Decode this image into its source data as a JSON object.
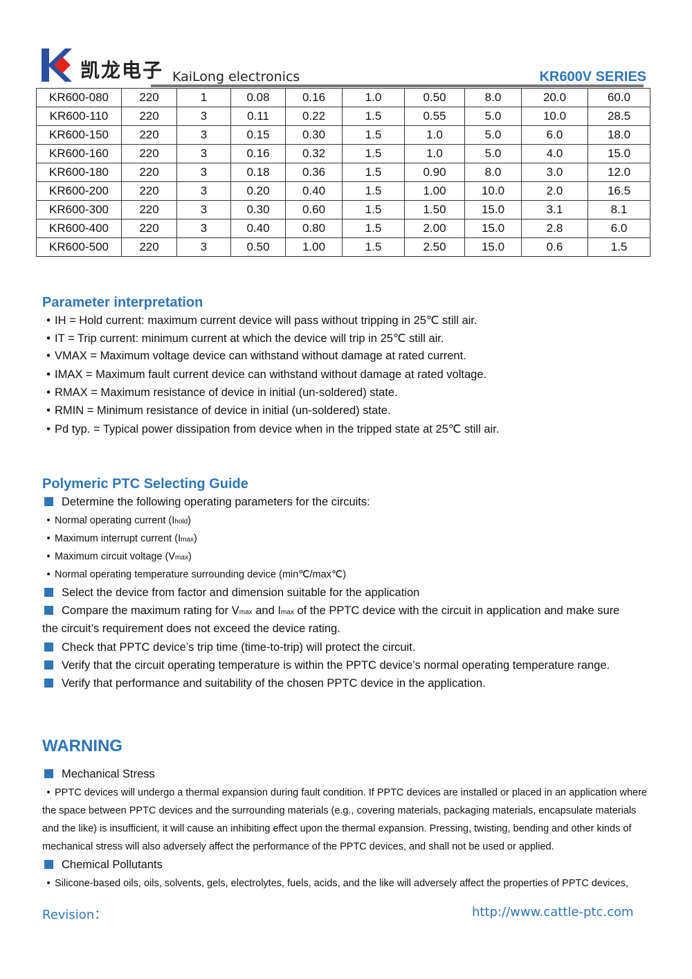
{
  "header": {
    "logo_text": "凯龙电子",
    "brand": "KaiLong electronics",
    "series": "KR600V SERIES"
  },
  "table": {
    "rows": [
      [
        "KR600-080",
        "220",
        "1",
        "0.08",
        "0.16",
        "1.0",
        "0.50",
        "8.0",
        "20.0",
        "60.0"
      ],
      [
        "KR600-110",
        "220",
        "3",
        "0.11",
        "0.22",
        "1.5",
        "0.55",
        "5.0",
        "10.0",
        "28.5"
      ],
      [
        "KR600-150",
        "220",
        "3",
        "0.15",
        "0.30",
        "1.5",
        "1.0",
        "5.0",
        "6.0",
        "18.0"
      ],
      [
        "KR600-160",
        "220",
        "3",
        "0.16",
        "0.32",
        "1.5",
        "1.0",
        "5.0",
        "4.0",
        "15.0"
      ],
      [
        "KR600-180",
        "220",
        "3",
        "0.18",
        "0.36",
        "1.5",
        "0.90",
        "8.0",
        "3.0",
        "12.0"
      ],
      [
        "KR600-200",
        "220",
        "3",
        "0.20",
        "0.40",
        "1.5",
        "1.00",
        "10.0",
        "2.0",
        "16.5"
      ],
      [
        "KR600-300",
        "220",
        "3",
        "0.30",
        "0.60",
        "1.5",
        "1.50",
        "15.0",
        "3.1",
        "8.1"
      ],
      [
        "KR600-400",
        "220",
        "3",
        "0.40",
        "0.80",
        "1.5",
        "2.00",
        "15.0",
        "2.8",
        "6.0"
      ],
      [
        "KR600-500",
        "220",
        "3",
        "0.50",
        "1.00",
        "1.5",
        "2.50",
        "15.0",
        "0.6",
        "1.5"
      ]
    ]
  },
  "params": {
    "title": "Parameter interpretation",
    "items": [
      "IH = Hold current: maximum current device will pass without tripping in 25℃  still air.",
      "IT = Trip current: minimum current at which the device will trip in 25℃  still air.",
      "VMAX = Maximum voltage device can withstand without damage at rated current.",
      "IMAX = Maximum fault current device can withstand without damage at rated voltage.",
      "RMAX = Maximum resistance of device in initial (un-soldered) state.",
      "RMIN = Minimum resistance of device in initial (un-soldered) state.",
      "Pd typ. = Typical power dissipation from device when in the tripped state at 25℃  still air."
    ]
  },
  "guide": {
    "title": "Polymeric PTC Selecting Guide",
    "step1": "Determine the following operating parameters for the circuits:",
    "sub1": {
      "text": "Normal operating current (I",
      "sub": "hold",
      "end": ")"
    },
    "sub2": {
      "text": "Maximum interrupt current (I",
      "sub": "max",
      "end": ")"
    },
    "sub3": {
      "text": "Maximum circuit voltage (V",
      "sub": "max",
      "end": ")"
    },
    "sub4": "Normal operating temperature surrounding device (min℃/max℃)",
    "step2": "Select the device from factor and dimension suitable for the application",
    "step3a": "Compare the maximum rating for V",
    "step3_sub1": "max",
    "step3b": " and I",
    "step3_sub2": "max",
    "step3c": " of the PPTC device with the circuit in application and make sure",
    "step3_cont": "the circuit’s requirement does not exceed the device rating.",
    "step4": "Check that PPTC device’s trip time (time-to-trip) will protect the circuit.",
    "step5": "Verify that the circuit operating temperature is within the PPTC device’s normal operating temperature range.",
    "step6": "Verify that performance and suitability of the chosen PPTC device in the application."
  },
  "warning": {
    "title": "WARNING",
    "mech_title": "Mechanical Stress",
    "mech_text": "PPTC devices will undergo a thermal expansion during fault condition. If PPTC devices are installed or placed in an application where the space between PPTC devices and the surrounding materials (e.g., covering materials, packaging materials, encapsulate materials and the like) is insufficient, it will cause an inhibiting effect upon the thermal expansion. Pressing, twisting, bending and other kinds of mechanical stress will also adversely affect the performance of the PPTC devices, and shall not be used or applied.",
    "chem_title": "Chemical Pollutants",
    "chem_text": "Silicone-based oils, oils, solvents, gels, electrolytes, fuels, acids, and the like will adversely affect the properties of PPTC devices,"
  },
  "footer": {
    "revision": "Revision：",
    "url": "http://www.cattle-ptc.com"
  },
  "colors": {
    "accent": "#2e75b6",
    "logo_blue": "#2b4fa3",
    "logo_red": "#e2231a"
  }
}
